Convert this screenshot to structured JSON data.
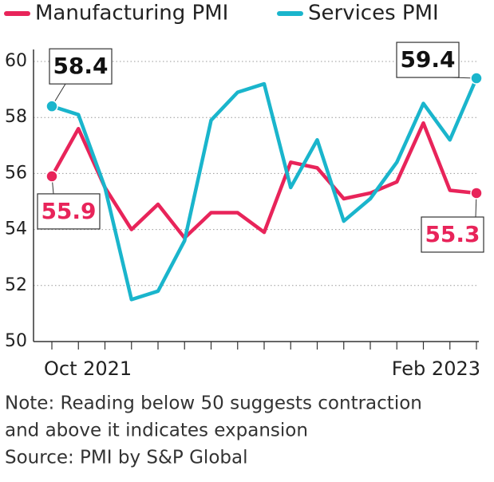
{
  "chart_data": {
    "type": "line",
    "categories": [
      "Oct 2021",
      null,
      null,
      null,
      null,
      null,
      null,
      null,
      null,
      null,
      null,
      null,
      null,
      null,
      null,
      null,
      "Feb 2023"
    ],
    "series": [
      {
        "name": "Manufacturing PMI",
        "color": "#e8245a",
        "values": [
          55.9,
          57.6,
          55.5,
          54.0,
          54.9,
          53.7,
          54.6,
          54.6,
          53.9,
          56.4,
          56.2,
          55.1,
          55.3,
          55.7,
          57.8,
          55.4,
          55.3
        ]
      },
      {
        "name": "Services PMI",
        "color": "#1ab5cc",
        "values": [
          58.4,
          58.1,
          55.5,
          51.5,
          51.8,
          53.6,
          57.9,
          58.9,
          59.2,
          55.5,
          57.2,
          54.3,
          55.1,
          56.4,
          58.5,
          57.2,
          59.4
        ]
      }
    ],
    "ylim": [
      50,
      60
    ],
    "yticks": [
      50,
      52,
      54,
      56,
      58,
      60
    ],
    "grid": true,
    "legend": "top",
    "data_labels": "ends",
    "notes": [
      "Note: Reading below 50 suggests contraction",
      "and above it indicates expansion",
      "Source: PMI by S&P Global"
    ]
  }
}
